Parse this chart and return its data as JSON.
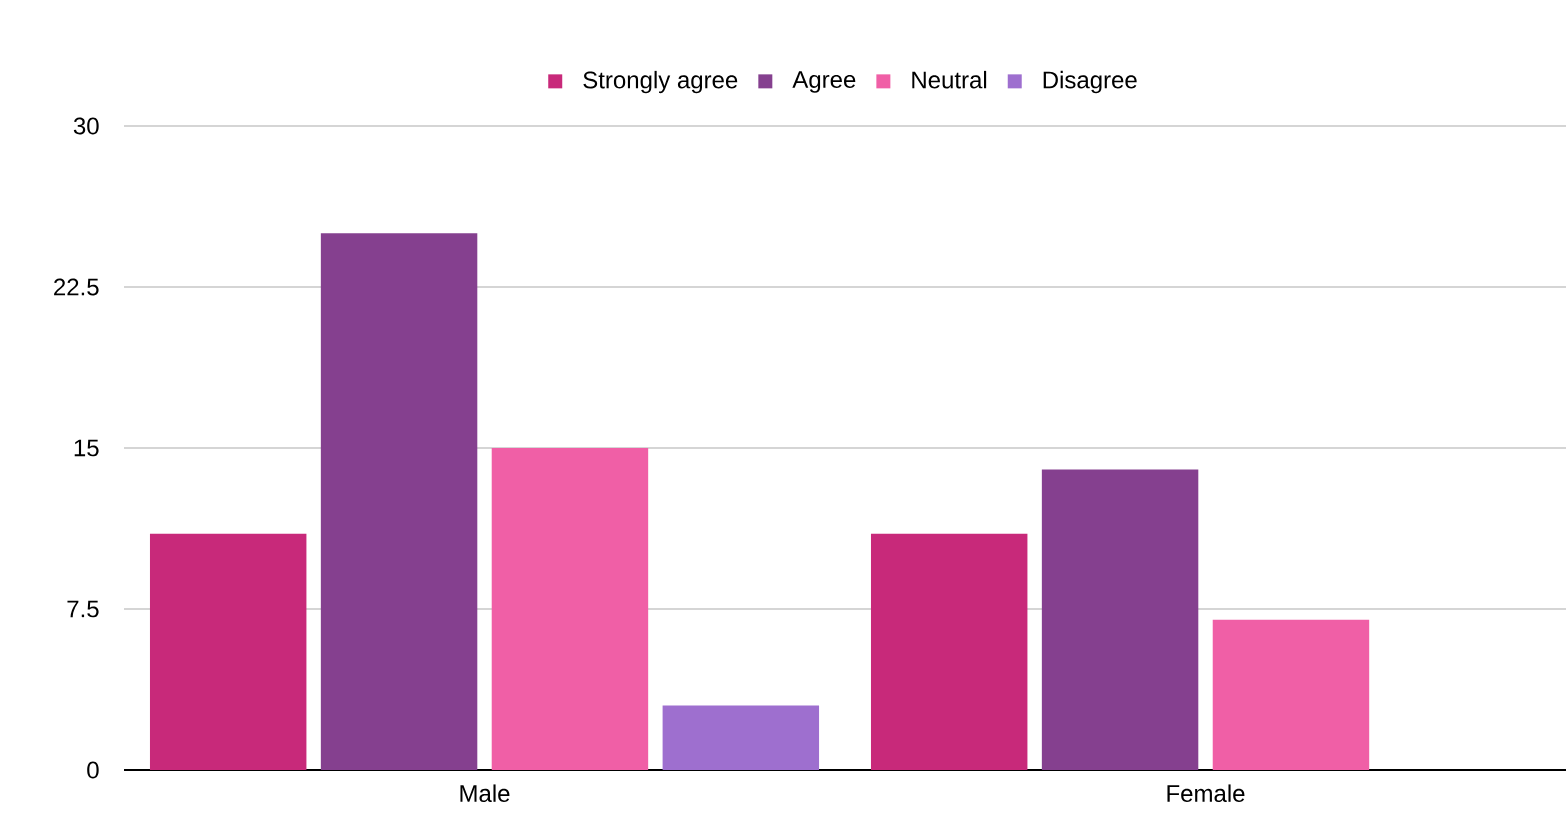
{
  "chart_data": {
    "type": "bar",
    "categories": [
      "Male",
      "Female"
    ],
    "series": [
      {
        "name": "Strongly agree",
        "color": "#c8297a",
        "values": [
          11,
          11
        ]
      },
      {
        "name": "Agree",
        "color": "#85408f",
        "values": [
          25,
          14
        ]
      },
      {
        "name": "Neutral",
        "color": "#f05fa6",
        "values": [
          15,
          7
        ]
      },
      {
        "name": "Disagree",
        "color": "#9e6fcf",
        "values": [
          3,
          0
        ]
      }
    ],
    "ylim": [
      0,
      30
    ],
    "yticks": [
      0,
      7.5,
      15,
      22.5,
      30
    ],
    "grid": "y",
    "legend": "top"
  }
}
